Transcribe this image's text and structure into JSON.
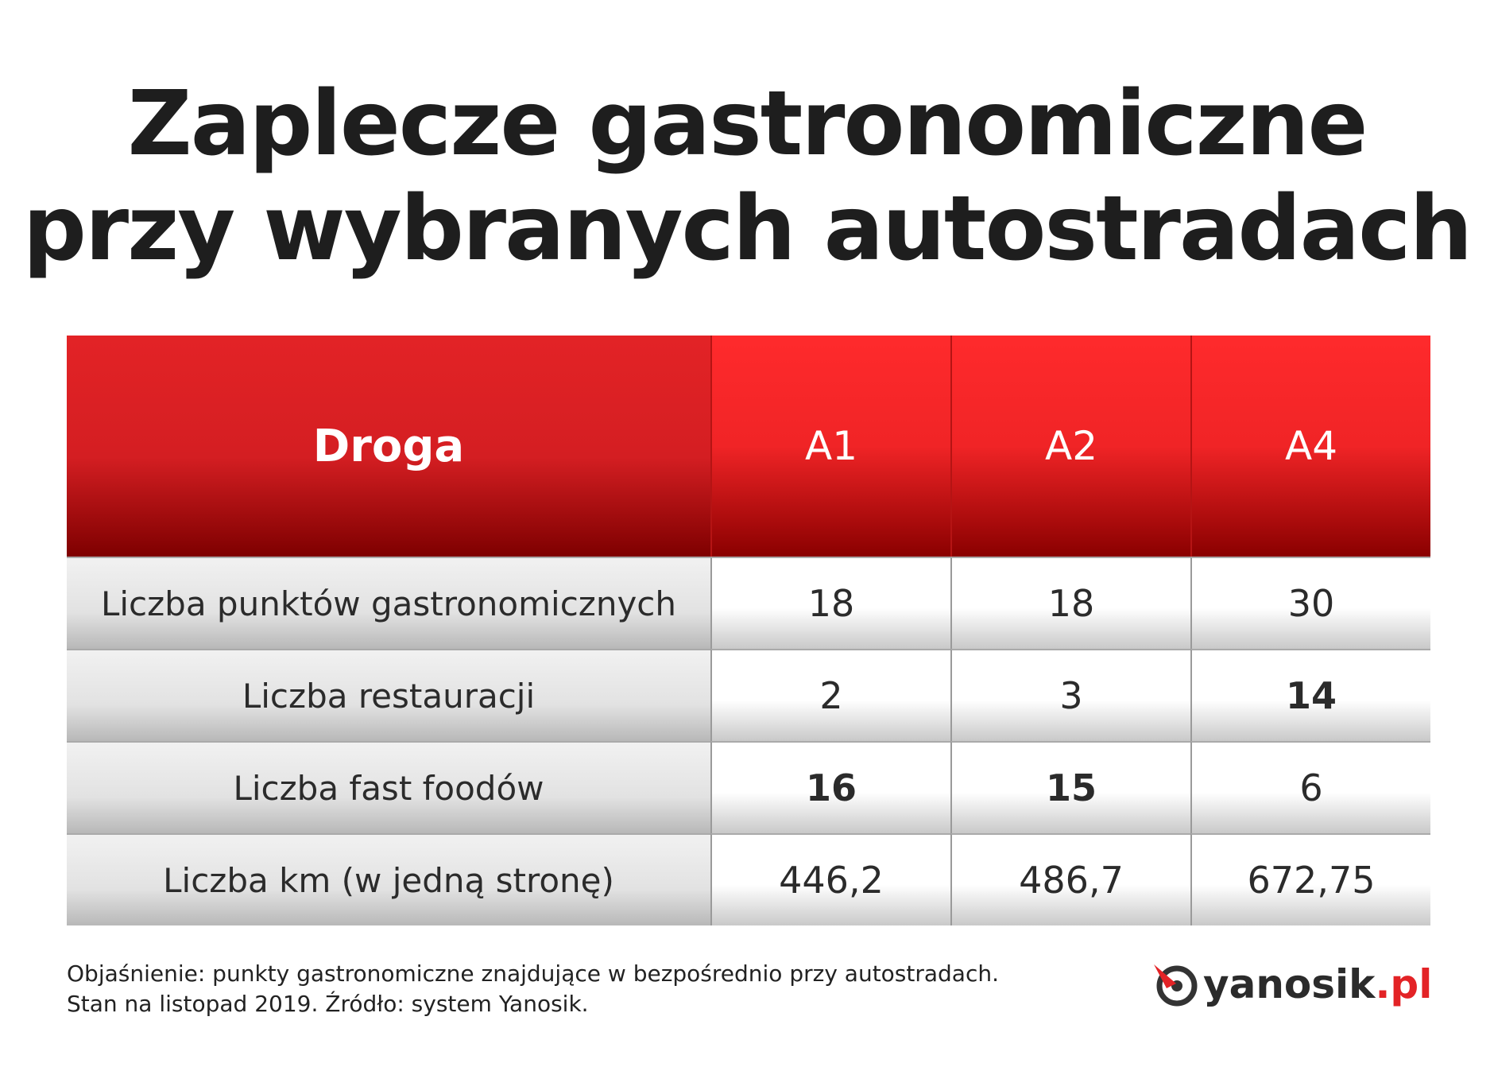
{
  "header": {
    "title": [
      "Zaplecze gastronomiczne",
      "przy wybranych autostradach"
    ]
  },
  "table": {
    "columns": [
      "Droga",
      "A1",
      "A2",
      "A4"
    ],
    "rows": [
      [
        "Liczba punktów gastronomicznych",
        "18",
        "18",
        "30"
      ],
      [
        "Liczba restauracji",
        "2",
        "3",
        "14"
      ],
      [
        "Liczba fast foodów",
        "16",
        "15",
        "6"
      ],
      [
        "Liczba km (w jedną stronę)",
        "446,2",
        "486,7",
        "672,75"
      ]
    ]
  },
  "footer": {
    "notes": [
      "Objaśnienie: punkty gastronomiczne znajdujące w bezpośrednio przy autostradach.",
      "Stan na listopad 2019. Źródło: system Yanosik."
    ],
    "logo": {
      "name": "yanosik",
      "suffix": ".pl"
    }
  }
}
